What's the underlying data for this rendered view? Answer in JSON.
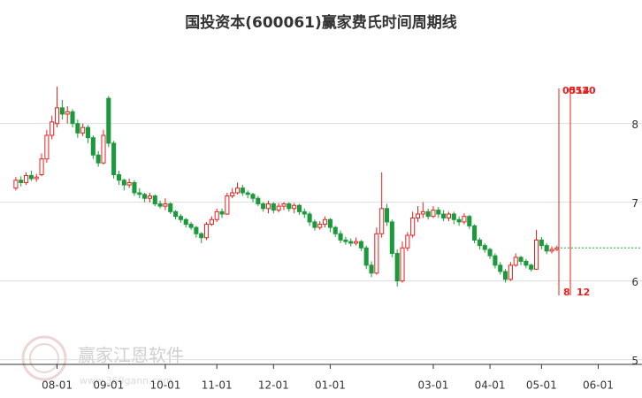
{
  "chart_data": {
    "type": "candlestick",
    "title": "国投资本(600061)赢家费氏时间周期线",
    "categories": [
      null,
      null,
      null,
      null,
      null,
      null,
      null,
      null,
      "08-01",
      null,
      null,
      null,
      null,
      null,
      null,
      null,
      null,
      null,
      "09-01",
      null,
      null,
      null,
      null,
      null,
      null,
      null,
      null,
      null,
      null,
      "10-01",
      null,
      null,
      null,
      null,
      null,
      null,
      null,
      null,
      null,
      "11-01",
      null,
      null,
      null,
      null,
      null,
      null,
      null,
      null,
      null,
      null,
      "12-01",
      null,
      null,
      null,
      null,
      null,
      null,
      null,
      null,
      null,
      null,
      "01-01",
      null,
      null,
      null,
      null,
      null,
      null,
      null,
      null,
      null,
      null,
      null,
      null,
      null,
      null,
      null,
      null,
      null,
      null,
      null,
      "03-01",
      null,
      null,
      null,
      null,
      null,
      null,
      null,
      null,
      null,
      null,
      "04-01",
      null,
      null,
      null,
      null,
      null,
      null,
      null,
      null,
      null,
      "05-01",
      null,
      null,
      null,
      null,
      null,
      null,
      null,
      null,
      null,
      null,
      "06-01",
      null,
      null,
      null,
      null,
      null,
      null,
      null,
      null
    ],
    "open": [
      7.18,
      7.28,
      7.25,
      7.34,
      7.3,
      7.35,
      7.55,
      7.85,
      8.0,
      8.2,
      8.12,
      8.15,
      8.0,
      7.88,
      7.95,
      7.82,
      7.6,
      7.5,
      8.32,
      7.75,
      7.35,
      7.28,
      7.22,
      7.25,
      7.12,
      7.1,
      7.05,
      7.08,
      6.98,
      6.95,
      6.98,
      6.88,
      6.82,
      6.78,
      6.72,
      6.68,
      6.6,
      6.55,
      6.72,
      6.78,
      6.88,
      6.85,
      7.08,
      7.12,
      7.18,
      7.12,
      7.1,
      7.05,
      6.98,
      6.92,
      6.98,
      6.9,
      6.95,
      6.98,
      6.92,
      6.96,
      6.88,
      6.85,
      6.75,
      6.68,
      6.72,
      6.78,
      6.68,
      6.6,
      6.52,
      6.5,
      6.48,
      6.5,
      6.42,
      6.2,
      6.1,
      6.6,
      6.92,
      6.75,
      6.35,
      6.0,
      6.42,
      6.58,
      6.8,
      6.85,
      6.88,
      6.82,
      6.9,
      6.85,
      6.8,
      6.85,
      6.78,
      6.75,
      6.82,
      6.7,
      6.52,
      6.45,
      6.4,
      6.32,
      6.2,
      6.12,
      6.02,
      6.2,
      6.3,
      6.25,
      6.2,
      6.15,
      6.52,
      6.45,
      6.38,
      6.4,
      null,
      null,
      null,
      null,
      null,
      null,
      null,
      null,
      null,
      null,
      null,
      null,
      null,
      null,
      null,
      null
    ],
    "high": [
      7.32,
      7.33,
      7.38,
      7.4,
      7.36,
      7.62,
      7.92,
      8.1,
      8.47,
      8.3,
      8.22,
      8.18,
      8.05,
      8.0,
      7.98,
      7.85,
      7.65,
      7.92,
      8.35,
      7.78,
      7.4,
      7.3,
      7.3,
      7.28,
      7.18,
      7.12,
      7.12,
      7.1,
      7.02,
      7.05,
      7.0,
      6.9,
      6.85,
      6.8,
      6.75,
      6.7,
      6.62,
      6.75,
      6.82,
      6.92,
      6.92,
      7.12,
      7.18,
      7.25,
      7.22,
      7.15,
      7.12,
      7.08,
      7.0,
      7.02,
      7.0,
      6.99,
      7.0,
      7.0,
      6.99,
      6.98,
      6.92,
      6.88,
      6.78,
      6.76,
      6.82,
      6.8,
      6.7,
      6.64,
      6.56,
      6.54,
      6.55,
      6.52,
      6.45,
      6.25,
      6.68,
      7.38,
      6.98,
      6.78,
      6.4,
      6.5,
      6.62,
      6.88,
      6.95,
      7.0,
      6.92,
      6.95,
      6.94,
      6.9,
      6.88,
      6.88,
      6.82,
      6.86,
      6.84,
      6.72,
      6.55,
      6.48,
      6.42,
      6.35,
      6.24,
      6.15,
      6.24,
      6.35,
      6.32,
      6.28,
      6.22,
      6.65,
      6.56,
      6.48,
      6.44,
      6.45,
      null,
      null,
      null,
      null,
      null,
      null,
      null,
      null,
      null,
      null,
      null,
      null,
      null,
      null,
      null,
      null
    ],
    "low": [
      7.15,
      7.2,
      7.22,
      7.27,
      7.26,
      7.33,
      7.5,
      7.8,
      7.95,
      8.05,
      8.0,
      7.95,
      7.82,
      7.84,
      7.75,
      7.55,
      7.45,
      7.48,
      7.7,
      7.3,
      7.22,
      7.15,
      7.18,
      7.08,
      7.05,
      7.0,
      7.0,
      6.95,
      6.92,
      6.9,
      6.85,
      6.78,
      6.74,
      6.68,
      6.65,
      6.55,
      6.48,
      6.52,
      6.7,
      6.75,
      6.8,
      6.84,
      7.05,
      7.1,
      7.08,
      7.05,
      7.0,
      6.95,
      6.88,
      6.86,
      6.86,
      6.87,
      6.9,
      6.88,
      6.86,
      6.84,
      6.8,
      6.7,
      6.64,
      6.65,
      6.68,
      6.62,
      6.56,
      6.48,
      6.46,
      6.44,
      6.45,
      6.38,
      6.15,
      6.05,
      6.08,
      6.55,
      6.7,
      6.3,
      5.93,
      5.98,
      6.38,
      6.55,
      6.75,
      6.8,
      6.78,
      6.8,
      6.8,
      6.76,
      6.76,
      6.72,
      6.7,
      6.72,
      6.66,
      6.48,
      6.4,
      6.36,
      6.28,
      6.16,
      6.08,
      5.98,
      6.0,
      6.18,
      6.2,
      6.16,
      6.12,
      6.14,
      6.4,
      6.34,
      6.35,
      6.38,
      null,
      null,
      null,
      null,
      null,
      null,
      null,
      null,
      null,
      null,
      null,
      null,
      null,
      null,
      null,
      null
    ],
    "close": [
      7.28,
      7.25,
      7.34,
      7.3,
      7.32,
      7.55,
      7.85,
      8.02,
      8.2,
      8.12,
      8.15,
      8.0,
      7.88,
      7.95,
      7.82,
      7.6,
      7.5,
      7.85,
      7.75,
      7.35,
      7.28,
      7.22,
      7.25,
      7.12,
      7.1,
      7.05,
      7.08,
      6.98,
      6.95,
      6.98,
      6.88,
      6.82,
      6.78,
      6.72,
      6.68,
      6.6,
      6.55,
      6.72,
      6.78,
      6.88,
      6.85,
      7.08,
      7.12,
      7.18,
      7.12,
      7.1,
      7.05,
      6.98,
      6.92,
      6.98,
      6.9,
      6.95,
      6.98,
      6.92,
      6.96,
      6.88,
      6.85,
      6.75,
      6.68,
      6.72,
      6.78,
      6.68,
      6.6,
      6.52,
      6.5,
      6.48,
      6.5,
      6.42,
      6.2,
      6.1,
      6.6,
      6.92,
      6.75,
      6.35,
      6.0,
      6.42,
      6.58,
      6.8,
      6.85,
      6.88,
      6.82,
      6.9,
      6.85,
      6.8,
      6.85,
      6.78,
      6.75,
      6.82,
      6.7,
      6.52,
      6.45,
      6.4,
      6.32,
      6.2,
      6.12,
      6.02,
      6.2,
      6.3,
      6.25,
      6.2,
      6.15,
      6.52,
      6.45,
      6.38,
      6.4,
      6.42,
      null,
      null,
      null,
      null,
      null,
      null,
      null,
      null,
      null,
      null,
      null,
      null,
      null,
      null,
      null,
      null
    ],
    "up_color": "#e8201e",
    "down_color": "#1a9a3a",
    "ylim": [
      4.94,
      9.12
    ],
    "yticks": [
      5,
      6,
      7,
      8
    ],
    "grid": true,
    "annotations": [
      {
        "label_top": "0514",
        "label_bottom": "8"
      },
      {
        "label_top": "0520",
        "label_bottom": "12"
      }
    ],
    "annotation_color": "#e8201e",
    "watermark": {
      "name": "赢家江恩软件",
      "url": "www.360gann.com"
    }
  }
}
